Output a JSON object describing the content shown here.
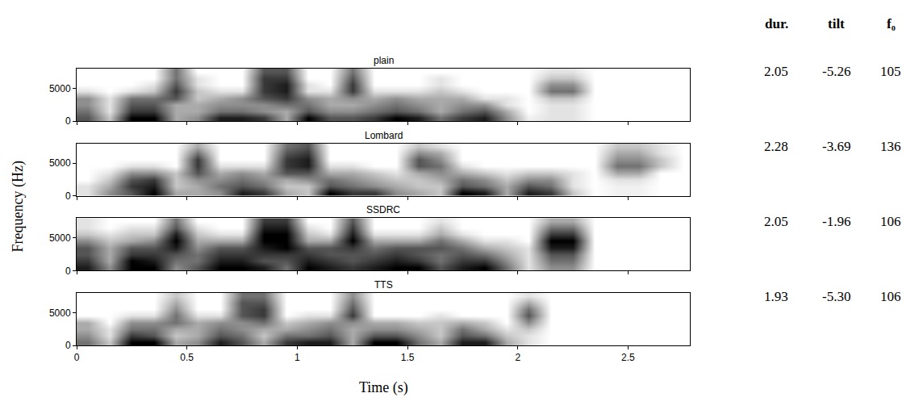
{
  "chart_data": [
    {
      "type": "heatmap",
      "title": "plain",
      "x": [
        0.05,
        0.15,
        0.25,
        0.35,
        0.45,
        0.55,
        0.65,
        0.75,
        0.85,
        0.95,
        1.05,
        1.15,
        1.25,
        1.35,
        1.45,
        1.55,
        1.65,
        1.75,
        1.85,
        1.95,
        2.05,
        2.15,
        2.25,
        2.35,
        2.45,
        2.55,
        2.65,
        2.75
      ],
      "y": [
        500,
        1500,
        2500,
        3500,
        4500,
        5500,
        6500,
        7500
      ],
      "z": [
        [
          0.6,
          0.2,
          0.9,
          0.9,
          0.3,
          0.4,
          0.8,
          0.8,
          0.7,
          0.3,
          0.9,
          0.6,
          0.6,
          0.7,
          0.9,
          0.8,
          0.5,
          0.7,
          0.8,
          0.4,
          0.05,
          0.1,
          0.1,
          0,
          0,
          0,
          0,
          0
        ],
        [
          0.5,
          0.1,
          0.7,
          0.7,
          0.3,
          0.3,
          0.5,
          0.5,
          0.4,
          0.3,
          0.6,
          0.4,
          0.4,
          0.5,
          0.6,
          0.5,
          0.3,
          0.5,
          0.6,
          0.3,
          0,
          0.1,
          0.1,
          0,
          0,
          0,
          0,
          0
        ],
        [
          0.4,
          0.1,
          0.6,
          0.6,
          0.3,
          0.3,
          0.4,
          0.4,
          0.4,
          0.5,
          0.5,
          0.3,
          0.3,
          0.4,
          0.5,
          0.4,
          0.3,
          0.4,
          0.4,
          0.1,
          0,
          0.1,
          0.1,
          0,
          0,
          0,
          0,
          0
        ],
        [
          0.4,
          0.1,
          0.5,
          0.5,
          0.6,
          0.2,
          0.3,
          0.4,
          0.6,
          0.7,
          0.4,
          0.3,
          0.4,
          0.3,
          0.4,
          0.3,
          0.3,
          0.3,
          0.1,
          0.1,
          0,
          0.2,
          0.2,
          0,
          0,
          0,
          0,
          0
        ],
        [
          0.1,
          0,
          0.1,
          0.2,
          0.7,
          0.2,
          0.1,
          0.1,
          0.7,
          0.8,
          0.1,
          0.1,
          0.7,
          0.1,
          0.1,
          0.1,
          0.2,
          0.1,
          0,
          0,
          0,
          0.5,
          0.5,
          0,
          0,
          0,
          0,
          0
        ],
        [
          0,
          0,
          0,
          0.1,
          0.6,
          0.1,
          0,
          0,
          0.7,
          0.8,
          0.1,
          0,
          0.7,
          0,
          0,
          0,
          0.1,
          0,
          0,
          0,
          0,
          0.4,
          0.4,
          0,
          0,
          0,
          0,
          0
        ],
        [
          0,
          0,
          0,
          0,
          0.5,
          0.1,
          0,
          0,
          0.7,
          0.7,
          0,
          0,
          0.6,
          0,
          0,
          0,
          0.1,
          0,
          0,
          0,
          0,
          0.2,
          0.2,
          0,
          0,
          0,
          0,
          0
        ],
        [
          0,
          0,
          0,
          0,
          0.5,
          0,
          0,
          0,
          0.6,
          0.6,
          0,
          0,
          0.5,
          0,
          0,
          0,
          0,
          0,
          0,
          0,
          0,
          0.1,
          0.1,
          0,
          0,
          0,
          0,
          0
        ]
      ],
      "xlim": [
        0,
        2.78
      ],
      "ylim": [
        0,
        8000
      ],
      "xticks": [
        0,
        0.5,
        1,
        1.5,
        2,
        2.5
      ],
      "yticks": [
        0,
        5000
      ],
      "tick_labels": "y"
    },
    {
      "type": "heatmap",
      "title": "Lombard",
      "x": [
        0.05,
        0.15,
        0.25,
        0.35,
        0.45,
        0.55,
        0.65,
        0.75,
        0.85,
        0.95,
        1.05,
        1.15,
        1.25,
        1.35,
        1.45,
        1.55,
        1.65,
        1.75,
        1.85,
        1.95,
        2.05,
        2.15,
        2.25,
        2.35,
        2.45,
        2.55,
        2.65,
        2.75
      ],
      "y": [
        500,
        1500,
        2500,
        3500,
        4500,
        5500,
        6500,
        7500
      ],
      "z": [
        [
          0.1,
          0.4,
          0.6,
          0.9,
          0.3,
          0.3,
          0.4,
          0.8,
          0.7,
          0.3,
          0.2,
          0.9,
          0.7,
          0.7,
          0.4,
          0.3,
          0.2,
          0.9,
          0.8,
          0.3,
          0.8,
          0.7,
          0.2,
          0,
          0.05,
          0.05,
          0,
          0
        ],
        [
          0.1,
          0.3,
          0.7,
          0.8,
          0.2,
          0.3,
          0.5,
          0.6,
          0.5,
          0.2,
          0.2,
          0.6,
          0.5,
          0.4,
          0.3,
          0.2,
          0.2,
          0.6,
          0.5,
          0.3,
          0.6,
          0.5,
          0.1,
          0,
          0.05,
          0.05,
          0,
          0
        ],
        [
          0,
          0.2,
          0.6,
          0.7,
          0.2,
          0.4,
          0.4,
          0.5,
          0.4,
          0.3,
          0.4,
          0.5,
          0.4,
          0.3,
          0.2,
          0.2,
          0.3,
          0.5,
          0.4,
          0.2,
          0.4,
          0.4,
          0.1,
          0,
          0.1,
          0.1,
          0,
          0
        ],
        [
          0,
          0.1,
          0.4,
          0.4,
          0.2,
          0.6,
          0.3,
          0.4,
          0.3,
          0.6,
          0.6,
          0.3,
          0.3,
          0.2,
          0.1,
          0.3,
          0.4,
          0.3,
          0.2,
          0.1,
          0.2,
          0.2,
          0.1,
          0,
          0.3,
          0.3,
          0,
          0
        ],
        [
          0,
          0,
          0.1,
          0.1,
          0,
          0.7,
          0.1,
          0.1,
          0.1,
          0.7,
          0.8,
          0.1,
          0.1,
          0,
          0,
          0.6,
          0.5,
          0.1,
          0,
          0,
          0,
          0,
          0,
          0,
          0.5,
          0.5,
          0.2,
          0
        ],
        [
          0,
          0,
          0,
          0,
          0,
          0.7,
          0,
          0,
          0,
          0.7,
          0.8,
          0,
          0,
          0,
          0,
          0.6,
          0.4,
          0,
          0,
          0,
          0,
          0,
          0,
          0,
          0.4,
          0.4,
          0.2,
          0
        ],
        [
          0,
          0,
          0,
          0,
          0,
          0.5,
          0,
          0,
          0,
          0.6,
          0.7,
          0,
          0,
          0,
          0,
          0.4,
          0.3,
          0,
          0,
          0,
          0,
          0,
          0,
          0,
          0.3,
          0.3,
          0.1,
          0
        ],
        [
          0,
          0,
          0,
          0,
          0,
          0.3,
          0,
          0,
          0,
          0.5,
          0.6,
          0,
          0,
          0,
          0,
          0.2,
          0.1,
          0,
          0,
          0,
          0,
          0,
          0,
          0,
          0.2,
          0.2,
          0.1,
          0
        ]
      ],
      "xlim": [
        0,
        2.78
      ],
      "ylim": [
        0,
        8000
      ],
      "xticks": [
        0,
        0.5,
        1,
        1.5,
        2,
        2.5
      ],
      "yticks": [
        0,
        5000
      ],
      "tick_labels": "y"
    },
    {
      "type": "heatmap",
      "title": "SSDRC",
      "x": [
        0.05,
        0.15,
        0.25,
        0.35,
        0.45,
        0.55,
        0.65,
        0.75,
        0.85,
        0.95,
        1.05,
        1.15,
        1.25,
        1.35,
        1.45,
        1.55,
        1.65,
        1.75,
        1.85,
        1.95,
        2.05,
        2.15,
        2.25,
        2.35,
        2.45,
        2.55,
        2.65,
        2.75
      ],
      "y": [
        500,
        1500,
        2500,
        3500,
        4500,
        5500,
        6500,
        7500
      ],
      "z": [
        [
          0.8,
          0.4,
          0.9,
          0.9,
          0.4,
          0.6,
          0.9,
          0.9,
          0.8,
          0.5,
          0.9,
          0.8,
          0.7,
          0.8,
          0.9,
          0.9,
          0.6,
          0.8,
          0.9,
          0.5,
          0.1,
          0.4,
          0.4,
          0,
          0,
          0,
          0,
          0
        ],
        [
          0.7,
          0.3,
          0.9,
          0.8,
          0.5,
          0.5,
          0.8,
          0.8,
          0.6,
          0.6,
          0.8,
          0.7,
          0.6,
          0.7,
          0.8,
          0.7,
          0.5,
          0.7,
          0.7,
          0.4,
          0.1,
          0.5,
          0.5,
          0,
          0,
          0,
          0,
          0
        ],
        [
          0.6,
          0.3,
          0.7,
          0.7,
          0.6,
          0.5,
          0.7,
          0.7,
          0.7,
          0.7,
          0.7,
          0.6,
          0.6,
          0.6,
          0.7,
          0.6,
          0.5,
          0.6,
          0.5,
          0.3,
          0.1,
          0.6,
          0.6,
          0,
          0,
          0,
          0,
          0
        ],
        [
          0.6,
          0.3,
          0.6,
          0.6,
          0.8,
          0.4,
          0.6,
          0.6,
          0.8,
          0.9,
          0.6,
          0.6,
          0.7,
          0.5,
          0.6,
          0.6,
          0.6,
          0.5,
          0.3,
          0.2,
          0.1,
          0.8,
          0.8,
          0,
          0,
          0,
          0,
          0
        ],
        [
          0.4,
          0.2,
          0.3,
          0.4,
          0.9,
          0.3,
          0.3,
          0.3,
          0.9,
          0.9,
          0.3,
          0.3,
          0.9,
          0.3,
          0.3,
          0.3,
          0.5,
          0.3,
          0.1,
          0.1,
          0,
          0.9,
          0.9,
          0,
          0,
          0,
          0,
          0
        ],
        [
          0.2,
          0.1,
          0.2,
          0.2,
          0.8,
          0.2,
          0.1,
          0.1,
          0.9,
          0.9,
          0.2,
          0.1,
          0.8,
          0.1,
          0.1,
          0.1,
          0.3,
          0.1,
          0,
          0,
          0,
          0.7,
          0.7,
          0,
          0,
          0,
          0,
          0
        ],
        [
          0.1,
          0,
          0.1,
          0.1,
          0.6,
          0.1,
          0,
          0,
          0.8,
          0.8,
          0.1,
          0,
          0.7,
          0,
          0,
          0,
          0.2,
          0,
          0,
          0,
          0,
          0.5,
          0.5,
          0,
          0,
          0,
          0,
          0
        ],
        [
          0.1,
          0,
          0,
          0,
          0.5,
          0,
          0,
          0,
          0.7,
          0.7,
          0,
          0,
          0.6,
          0,
          0,
          0,
          0.1,
          0,
          0,
          0,
          0,
          0.3,
          0.3,
          0,
          0,
          0,
          0,
          0
        ]
      ],
      "xlim": [
        0,
        2.78
      ],
      "ylim": [
        0,
        8000
      ],
      "xticks": [
        0,
        0.5,
        1,
        1.5,
        2,
        2.5
      ],
      "yticks": [
        0,
        5000
      ],
      "tick_labels": "y"
    },
    {
      "type": "heatmap",
      "title": "TTS",
      "x": [
        0.05,
        0.15,
        0.25,
        0.35,
        0.45,
        0.55,
        0.65,
        0.75,
        0.85,
        0.95,
        1.05,
        1.15,
        1.25,
        1.35,
        1.45,
        1.55,
        1.65,
        1.75,
        1.85,
        1.95,
        2.05,
        2.15,
        2.25,
        2.35,
        2.45,
        2.55,
        2.65,
        2.75
      ],
      "y": [
        500,
        1500,
        2500,
        3500,
        4500,
        5500,
        6500,
        7500
      ],
      "z": [
        [
          0.5,
          0.2,
          0.9,
          0.9,
          0.3,
          0.4,
          0.8,
          0.6,
          0.3,
          0.7,
          0.8,
          0.8,
          0.3,
          0.9,
          0.9,
          0.5,
          0.3,
          0.8,
          0.8,
          0.3,
          0.1,
          0,
          0,
          0,
          0,
          0,
          0,
          0
        ],
        [
          0.4,
          0.1,
          0.7,
          0.6,
          0.2,
          0.3,
          0.6,
          0.5,
          0.2,
          0.5,
          0.5,
          0.6,
          0.3,
          0.6,
          0.6,
          0.4,
          0.2,
          0.6,
          0.5,
          0.2,
          0.1,
          0,
          0,
          0,
          0,
          0,
          0,
          0
        ],
        [
          0.3,
          0.1,
          0.5,
          0.5,
          0.3,
          0.3,
          0.5,
          0.4,
          0.3,
          0.3,
          0.4,
          0.5,
          0.3,
          0.4,
          0.4,
          0.3,
          0.2,
          0.5,
          0.3,
          0.1,
          0.2,
          0,
          0,
          0,
          0,
          0,
          0,
          0
        ],
        [
          0.3,
          0,
          0.4,
          0.4,
          0.5,
          0.3,
          0.4,
          0.4,
          0.5,
          0.2,
          0.3,
          0.4,
          0.4,
          0.3,
          0.3,
          0.2,
          0.2,
          0.3,
          0.2,
          0,
          0.4,
          0,
          0,
          0,
          0,
          0,
          0,
          0
        ],
        [
          0,
          0,
          0.1,
          0.1,
          0.5,
          0.1,
          0.1,
          0.6,
          0.7,
          0,
          0.1,
          0.1,
          0.7,
          0,
          0,
          0,
          0.1,
          0,
          0,
          0,
          0.6,
          0,
          0,
          0,
          0,
          0,
          0,
          0
        ],
        [
          0,
          0,
          0,
          0,
          0.4,
          0,
          0,
          0.6,
          0.7,
          0,
          0,
          0,
          0.6,
          0,
          0,
          0,
          0,
          0,
          0,
          0,
          0.5,
          0,
          0,
          0,
          0,
          0,
          0,
          0
        ],
        [
          0,
          0,
          0,
          0,
          0.3,
          0,
          0,
          0.6,
          0.6,
          0,
          0,
          0,
          0.5,
          0,
          0,
          0,
          0,
          0,
          0,
          0,
          0.3,
          0,
          0,
          0,
          0,
          0,
          0,
          0
        ],
        [
          0,
          0,
          0,
          0,
          0.2,
          0,
          0,
          0.5,
          0.5,
          0,
          0,
          0,
          0.4,
          0,
          0,
          0,
          0,
          0,
          0,
          0,
          0.1,
          0,
          0,
          0,
          0,
          0,
          0,
          0
        ]
      ],
      "xlim": [
        0,
        2.78
      ],
      "ylim": [
        0,
        8000
      ],
      "xticks": [
        0,
        0.5,
        1,
        1.5,
        2,
        2.5
      ],
      "yticks": [
        0,
        5000
      ],
      "tick_labels": true
    }
  ],
  "axis_labels": {
    "x": "Time (s)",
    "y": "Frequency (Hz)"
  },
  "table": {
    "columns": [
      "dur.",
      "tilt",
      "f₀"
    ],
    "rows": [
      [
        2.05,
        -5.26,
        105
      ],
      [
        2.28,
        -3.69,
        136
      ],
      [
        2.05,
        -1.96,
        106
      ],
      [
        1.93,
        {
          "value": -5.3,
          "label": "-5.30"
        },
        106
      ]
    ]
  }
}
